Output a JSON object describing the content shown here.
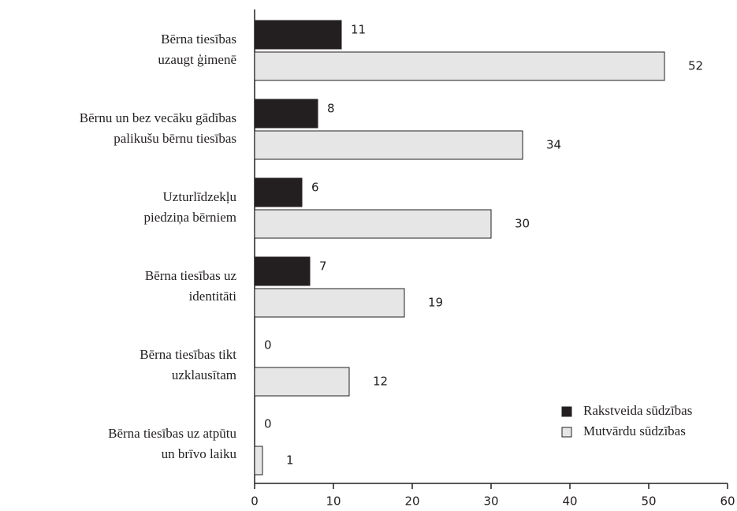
{
  "chart_data": {
    "type": "bar",
    "orientation": "horizontal",
    "categories": [
      [
        "Bērna tiesības",
        "uzaugt ģimenē"
      ],
      [
        "Bērnu un bez vecāku gādības",
        "palikušu bērnu tiesības"
      ],
      [
        "Uzturlīdzekļu",
        "piedziņa bērniem"
      ],
      [
        "Bērna tiesības uz",
        "identitāti"
      ],
      [
        "Bērna tiesības tikt",
        "uzklausītam"
      ],
      [
        "Bērna tiesības uz atpūtu",
        "un brīvo laiku"
      ]
    ],
    "series": [
      {
        "name": "Rakstveida sūdzības",
        "color": "#231f20",
        "values": [
          11,
          8,
          6,
          7,
          0,
          0
        ]
      },
      {
        "name": "Mutvārdu sūdzības",
        "color": "#e6e6e6",
        "values": [
          52,
          34,
          30,
          19,
          12,
          1
        ]
      }
    ],
    "xlim": [
      0,
      60
    ],
    "xticks": [
      0,
      10,
      20,
      30,
      40,
      50,
      60
    ],
    "legend": "lower right"
  }
}
